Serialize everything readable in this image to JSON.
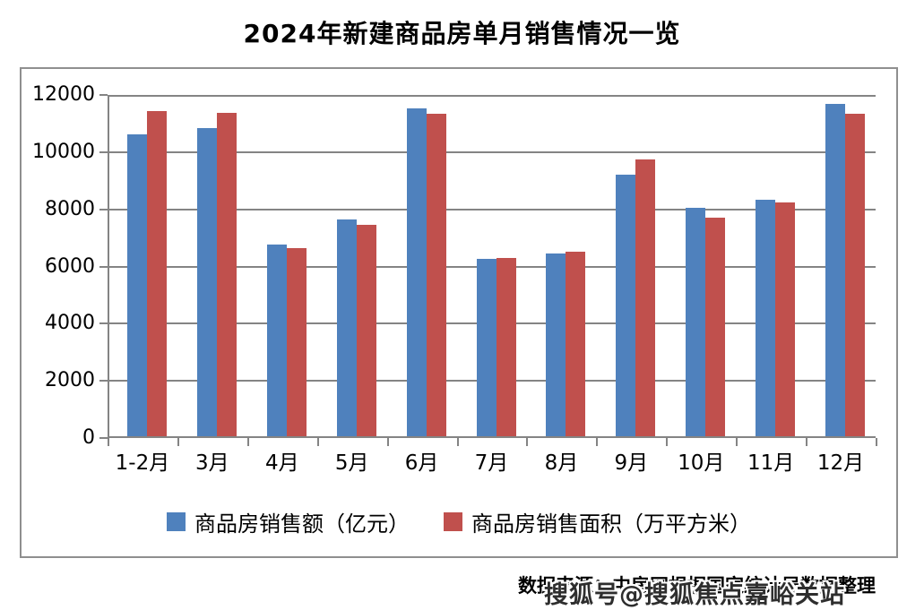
{
  "title": "2024年新建商品房单月销售情况一览",
  "chart_data": {
    "type": "bar",
    "title": "2024年新建商品房单月销售情况一览",
    "categories": [
      "1-2月",
      "3月",
      "4月",
      "5月",
      "6月",
      "7月",
      "8月",
      "9月",
      "10月",
      "11月",
      "12月"
    ],
    "series": [
      {
        "name": "商品房销售额（亿元）",
        "color": "#4F81BD",
        "values": [
          10566,
          10789,
          6712,
          7598,
          11468,
          6197,
          6393,
          9157,
          7975,
          8270,
          11625
        ]
      },
      {
        "name": "商品房销售面积（万平方米）",
        "color": "#C0504D",
        "values": [
          11369,
          11299,
          6584,
          7390,
          11274,
          6233,
          6453,
          9682,
          7646,
          8188,
          11267
        ]
      }
    ],
    "xlabel": "",
    "ylabel": "",
    "ylim": [
      0,
      12000
    ],
    "yticks": [
      0,
      2000,
      4000,
      6000,
      8000,
      10000,
      12000
    ],
    "grid": "horizontal",
    "legend_position": "bottom"
  },
  "footer": {
    "source": "数据来源：中房网根据国家统计局数据整理"
  },
  "watermark": "搜狐号@搜狐焦点嘉峪关站",
  "colors": {
    "series_sales": "#4F81BD",
    "series_area": "#C0504D",
    "gridline": "#848484",
    "frame_border": "#8f8f8f",
    "title_text": "#000000",
    "watermark_text": "#2e2e2e"
  }
}
